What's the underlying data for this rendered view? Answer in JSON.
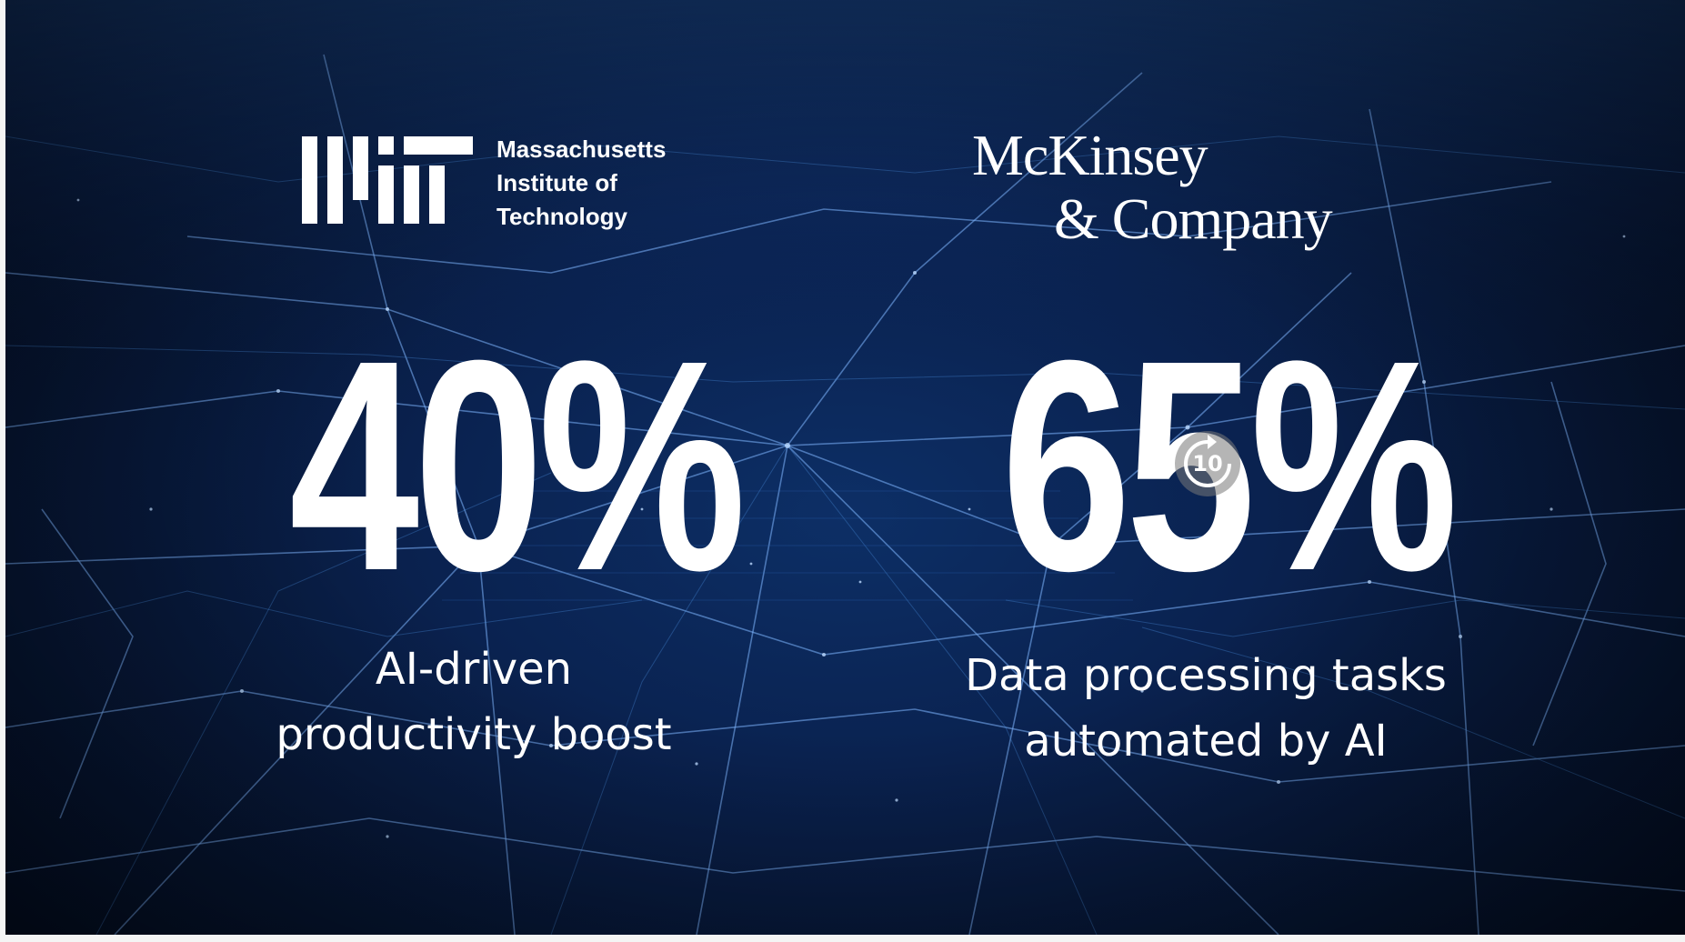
{
  "mit": {
    "wordmark": "Massachusetts\nInstitute of\nTechnology",
    "logo_letters": "MIT"
  },
  "mckinsey": {
    "line1": "McKinsey",
    "line2": "& Company"
  },
  "stats": [
    {
      "value": "40%",
      "caption": "AI-driven\nproductivity boost"
    },
    {
      "value": "65%",
      "caption": "Data processing tasks\nautomated by AI"
    }
  ],
  "controls": {
    "replay_seconds": "10",
    "replay_icon": "replay-10-icon"
  },
  "colors": {
    "background": "#0a2250",
    "network_lines": "#5fa8ff",
    "text": "#ffffff"
  }
}
